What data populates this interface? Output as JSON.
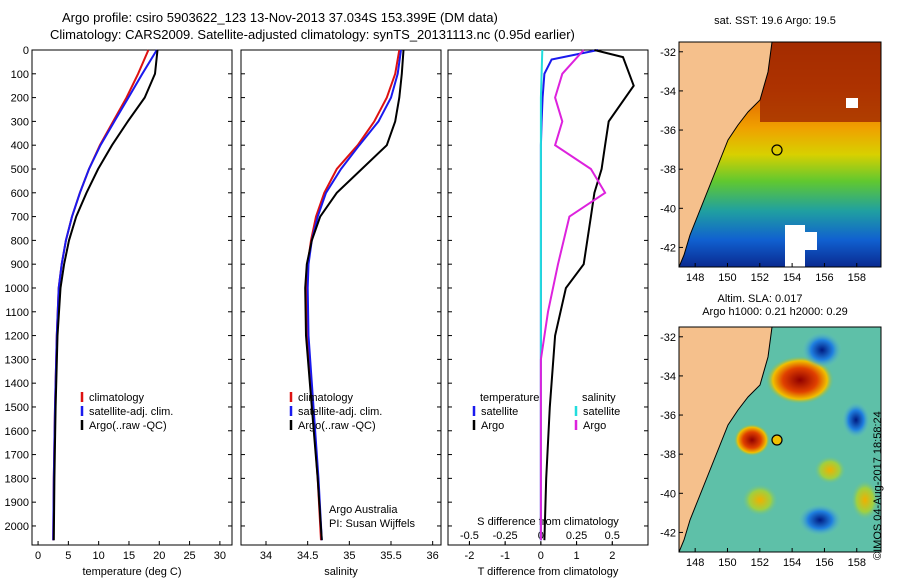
{
  "title": {
    "line1": "Argo profile: csiro 5903622_123 13-Nov-2013 37.034S 153.399E (DM data)",
    "line2": "Climatology: CARS2009. Satellite-adjusted climatology: synTS_20131113.nc (0.95d earlier)"
  },
  "colors": {
    "climatology": "#dd1111",
    "satellite": "#1a1aee",
    "argo": "#000000",
    "s_satellite": "#22dddd",
    "s_argo": "#dd22dd",
    "land": "#f5c08c"
  },
  "chart_data": [
    {
      "type": "line",
      "id": "temperature",
      "xlabel": "temperature (deg C)",
      "ylabel": "",
      "xlim": [
        -1,
        32
      ],
      "ylim": [
        2080,
        0
      ],
      "xticks": [
        0,
        5,
        10,
        15,
        20,
        25,
        30
      ],
      "yticks": [
        0,
        100,
        200,
        300,
        400,
        500,
        600,
        700,
        800,
        900,
        1000,
        1100,
        1200,
        1300,
        1400,
        1500,
        1600,
        1700,
        1800,
        1900,
        2000
      ],
      "legend": {
        "position": "lower-center",
        "entries": [
          "climatology",
          "satellite-adj. clim.",
          "Argo(..raw -QC)"
        ]
      },
      "series": [
        {
          "name": "climatology",
          "color": "#dd1111",
          "x": [
            18.2,
            16.5,
            14.6,
            12.4,
            10.2,
            8.4,
            6.9,
            5.6,
            4.6,
            3.9,
            3.4,
            3.1,
            2.8,
            2.6,
            2.5
          ],
          "y": [
            0,
            100,
            200,
            300,
            400,
            500,
            600,
            700,
            800,
            900,
            1000,
            1200,
            1500,
            1800,
            2060
          ]
        },
        {
          "name": "satellite-adj. clim.",
          "color": "#1a1aee",
          "x": [
            19.6,
            17.2,
            14.9,
            12.6,
            10.3,
            8.4,
            6.9,
            5.6,
            4.6,
            3.9,
            3.4,
            3.1,
            2.8,
            2.6,
            2.5
          ],
          "y": [
            0,
            100,
            200,
            300,
            400,
            500,
            600,
            700,
            800,
            900,
            1000,
            1200,
            1500,
            1800,
            2060
          ]
        },
        {
          "name": "Argo(..raw -QC)",
          "color": "#000000",
          "x": [
            19.7,
            19.3,
            17.6,
            14.8,
            12.2,
            9.9,
            8.0,
            6.3,
            5.1,
            4.3,
            3.7,
            3.2,
            2.9,
            2.7,
            2.6
          ],
          "y": [
            0,
            100,
            200,
            300,
            400,
            500,
            600,
            700,
            800,
            900,
            1000,
            1200,
            1500,
            1800,
            2060
          ]
        }
      ]
    },
    {
      "type": "line",
      "id": "salinity",
      "xlabel": "salinity",
      "xlim": [
        33.7,
        36.1
      ],
      "ylim": [
        2080,
        0
      ],
      "xticks": [
        34,
        34.5,
        35,
        35.5,
        36
      ],
      "xticklabels": [
        "34",
        "34.5",
        "35",
        "35.5",
        "36"
      ],
      "legend": {
        "position": "lower-center",
        "entries": [
          "climatology",
          "satellite-adj. clim.",
          "Argo(..raw -QC)"
        ]
      },
      "annotations": [
        "Argo Australia",
        "PI: Susan Wijffels"
      ],
      "series": [
        {
          "name": "climatology",
          "color": "#dd1111",
          "x": [
            35.6,
            35.55,
            35.45,
            35.3,
            35.1,
            34.85,
            34.7,
            34.6,
            34.54,
            34.5,
            34.49,
            34.5,
            34.56,
            34.62,
            34.66
          ],
          "y": [
            0,
            100,
            200,
            300,
            400,
            500,
            600,
            700,
            800,
            900,
            1000,
            1200,
            1500,
            1800,
            2060
          ]
        },
        {
          "name": "satellite-adj. clim.",
          "color": "#1a1aee",
          "x": [
            35.62,
            35.58,
            35.5,
            35.35,
            35.12,
            34.9,
            34.72,
            34.62,
            34.55,
            34.51,
            34.5,
            34.51,
            34.57,
            34.63,
            34.67
          ],
          "y": [
            0,
            100,
            200,
            300,
            400,
            500,
            600,
            700,
            800,
            900,
            1000,
            1200,
            1500,
            1800,
            2060
          ]
        },
        {
          "name": "Argo(..raw -QC)",
          "color": "#000000",
          "x": [
            35.65,
            35.63,
            35.6,
            35.55,
            35.45,
            35.15,
            34.85,
            34.65,
            34.55,
            34.49,
            34.47,
            34.48,
            34.55,
            34.62,
            34.67
          ],
          "y": [
            0,
            100,
            200,
            300,
            400,
            500,
            600,
            700,
            800,
            900,
            1000,
            1200,
            1500,
            1800,
            2060
          ]
        }
      ]
    },
    {
      "type": "line",
      "id": "difference",
      "xlabel": "T difference from climatology",
      "xlabel_top": "S difference from climatology",
      "xlim": [
        -2.6,
        3.0
      ],
      "ylim": [
        2080,
        0
      ],
      "xticks": [
        -2,
        -1,
        0,
        1,
        2
      ],
      "xticklabels": [
        "-2",
        "-1",
        "0",
        "1",
        "2"
      ],
      "sticks": [
        -0.5,
        -0.25,
        0,
        0.25,
        0.5
      ],
      "sticklabels": [
        "-0.5",
        "-0.25",
        "0",
        "0.25",
        "0.5"
      ],
      "s_scale": 4,
      "legend": {
        "position": "lower-center",
        "temperature_header": "temperature",
        "salinity_header": "salinity",
        "entries": [
          "satellite",
          "Argo",
          "satellite",
          "Argo"
        ]
      },
      "series": [
        {
          "name": "T satellite",
          "color": "#1a1aee",
          "x": [
            1.6,
            0.3,
            0.1,
            0.05,
            0.02,
            0.0,
            0.0,
            0.0,
            0.0,
            0.0,
            0.0,
            0.0,
            0.0,
            0.0
          ],
          "y": [
            0,
            40,
            100,
            200,
            300,
            400,
            500,
            600,
            800,
            1000,
            1300,
            1600,
            1900,
            2060
          ]
        },
        {
          "name": "T Argo",
          "color": "#000000",
          "x": [
            1.5,
            2.3,
            2.6,
            1.9,
            1.8,
            1.7,
            1.5,
            1.4,
            1.3,
            1.2,
            0.7,
            0.4,
            0.25,
            0.15,
            0.1
          ],
          "y": [
            0,
            30,
            150,
            300,
            400,
            500,
            600,
            700,
            800,
            900,
            1000,
            1200,
            1500,
            1800,
            2060
          ]
        },
        {
          "name": "S satellite",
          "color": "#22dddd",
          "x": [
            0.01,
            0.005,
            0.0,
            0.0,
            0.0,
            0.0,
            0.0,
            0.0,
            0.0,
            0.0
          ],
          "y": [
            0,
            100,
            200,
            400,
            600,
            800,
            1000,
            1400,
            1800,
            2060
          ]
        },
        {
          "name": "S Argo",
          "color": "#dd22dd",
          "x": [
            0.3,
            0.15,
            0.1,
            0.15,
            0.1,
            0.35,
            0.45,
            0.2,
            0.12,
            0.05,
            0.0,
            0.0,
            0.0,
            0.0
          ],
          "y": [
            0,
            100,
            200,
            300,
            400,
            500,
            600,
            700,
            900,
            1100,
            1300,
            1600,
            1900,
            2060
          ]
        }
      ]
    },
    {
      "type": "heatmap",
      "id": "sst_map",
      "title": "sat. SST: 19.6 Argo: 19.5",
      "xticks": [
        148,
        150,
        152,
        154,
        156,
        158
      ],
      "yticks": [
        -32,
        -34,
        -36,
        -38,
        -40,
        -42
      ],
      "xlim": [
        147,
        159.5
      ],
      "ylim": [
        -43,
        -31.5
      ],
      "marker": {
        "lon": 153.4,
        "lat": -37.0
      }
    },
    {
      "type": "heatmap",
      "id": "sla_map",
      "title": "Altim. SLA: 0.017",
      "subtitle": "Argo h1000: 0.21 h2000: 0.29",
      "xticks": [
        148,
        150,
        152,
        154,
        156,
        158
      ],
      "yticks": [
        -32,
        -34,
        -36,
        -38,
        -40,
        -42
      ],
      "xlim": [
        147,
        159.5
      ],
      "ylim": [
        -43,
        -31.5
      ],
      "marker": {
        "lon": 153.4,
        "lat": -37.0
      }
    }
  ],
  "stamp": "©IMOS 04-Aug-2017 18:58:24"
}
